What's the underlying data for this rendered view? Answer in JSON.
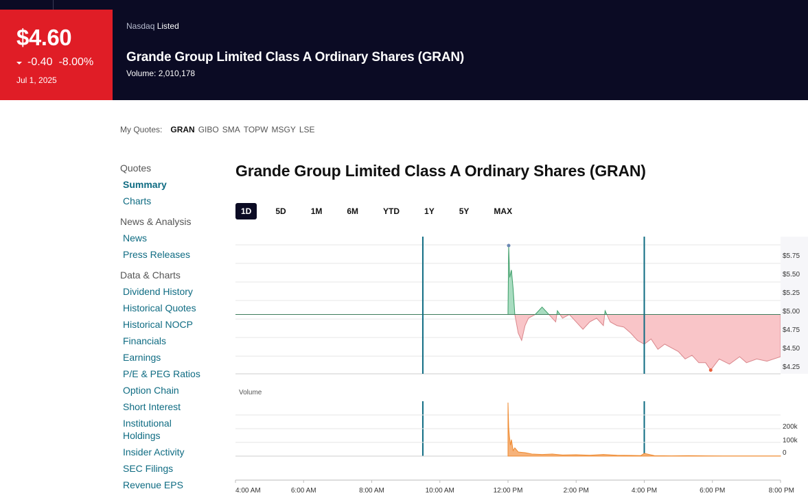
{
  "header": {
    "price": "$4.60",
    "change": "-0.40",
    "change_pct": "-8.00%",
    "date": "Jul 1, 2025",
    "exchange": "Nasdaq",
    "listed": "Listed",
    "title": "Grande Group Limited Class A Ordinary Shares (GRAN)",
    "volume_label": "Volume:",
    "volume_value": "2,010,178",
    "down_color": "#e01d26"
  },
  "my_quotes": {
    "label": "My Quotes:",
    "items": [
      "GRAN",
      "GIBO",
      "SMA",
      "TOPW",
      "MSGY",
      "LSE"
    ]
  },
  "sidebar": {
    "sections": [
      {
        "title": "Quotes",
        "items": [
          "Summary",
          "Charts"
        ]
      },
      {
        "title": "News & Analysis",
        "items": [
          "News",
          "Press Releases"
        ]
      },
      {
        "title": "Data & Charts",
        "items": [
          "Dividend History",
          "Historical Quotes",
          "Historical NOCP",
          "Financials",
          "Earnings",
          "P/E & PEG Ratios",
          "Option Chain",
          "Short Interest",
          "Institutional Holdings",
          "Insider Activity",
          "SEC Filings",
          "Revenue EPS"
        ]
      }
    ]
  },
  "main": {
    "title": "Grande Group Limited Class A Ordinary Shares (GRAN)",
    "ranges": [
      "1D",
      "5D",
      "1M",
      "6M",
      "YTD",
      "1Y",
      "5Y",
      "MAX"
    ],
    "active_range": "1D"
  },
  "chart_data": {
    "type": "area",
    "x_ticks": [
      "4:00 AM",
      "6:00 AM",
      "8:00 AM",
      "10:00 AM",
      "12:00 PM",
      "2:00 PM",
      "4:00 PM",
      "6:00 PM",
      "8:00 PM"
    ],
    "x_range_hours": [
      4,
      20
    ],
    "market_open_hour": 9.5,
    "market_close_hour": 16,
    "previous_close": 4.95,
    "price_ticks": [
      "$5.75",
      "$5.50",
      "$5.25",
      "$5.00",
      "$4.75",
      "$4.50",
      "$4.25"
    ],
    "price_tick_values": [
      5.75,
      5.5,
      5.25,
      5.0,
      4.75,
      4.5,
      4.25
    ],
    "price_ylim": [
      4.15,
      6.0
    ],
    "price_series": {
      "x": [
        12.0,
        12.02,
        12.05,
        12.1,
        12.15,
        12.2,
        12.3,
        12.4,
        12.5,
        12.6,
        12.8,
        13.0,
        13.2,
        13.4,
        13.45,
        13.6,
        13.8,
        14.0,
        14.2,
        14.4,
        14.6,
        14.8,
        14.85,
        15.0,
        15.2,
        15.4,
        15.6,
        15.8,
        16.0,
        16.2,
        16.4,
        16.6,
        16.8,
        17.0,
        17.2,
        17.4,
        17.6,
        17.8,
        17.95,
        18.2,
        18.5,
        18.8,
        19.0,
        19.3,
        19.6,
        20.0
      ],
      "y": [
        5.0,
        5.88,
        5.45,
        5.55,
        5.3,
        4.95,
        4.7,
        4.6,
        4.8,
        4.9,
        4.95,
        5.05,
        4.95,
        4.85,
        5.0,
        4.9,
        4.95,
        4.85,
        4.75,
        4.85,
        4.9,
        4.8,
        5.0,
        4.85,
        4.8,
        4.78,
        4.7,
        4.6,
        4.55,
        4.62,
        4.48,
        4.55,
        4.5,
        4.45,
        4.35,
        4.4,
        4.3,
        4.3,
        4.2,
        4.35,
        4.28,
        4.38,
        4.3,
        4.35,
        4.32,
        4.38
      ]
    },
    "price_markers": {
      "high": "#6b87b3",
      "low": "#e8603c"
    },
    "colors": {
      "up_fill": "#a8dcc0",
      "up_line": "#3b9c66",
      "down_fill": "#f9c5c8",
      "down_line": "#d9868b",
      "session_line": "#0e6b82",
      "volume": "#ef8a2f"
    },
    "volume_label": "Volume",
    "volume_ticks": [
      "200k",
      "100k",
      "0"
    ],
    "volume_tick_values": [
      200000,
      100000,
      0
    ],
    "volume_ylim": [
      0,
      400000
    ],
    "volume_series": {
      "x": [
        12.0,
        12.02,
        12.04,
        12.07,
        12.1,
        12.15,
        12.2,
        12.3,
        12.5,
        12.7,
        13.0,
        13.3,
        13.6,
        14.0,
        14.4,
        14.8,
        15.2,
        15.6,
        15.9,
        16.0,
        16.3,
        16.8,
        17.3,
        17.8,
        18.3,
        18.8,
        19.3,
        20.0
      ],
      "y": [
        390000,
        210000,
        150000,
        80000,
        120000,
        40000,
        60000,
        30000,
        25000,
        15000,
        12000,
        15000,
        8000,
        10000,
        6000,
        12000,
        6000,
        5000,
        4000,
        20000,
        3000,
        2000,
        3000,
        2000,
        1000,
        1500,
        1000,
        1000
      ]
    }
  }
}
